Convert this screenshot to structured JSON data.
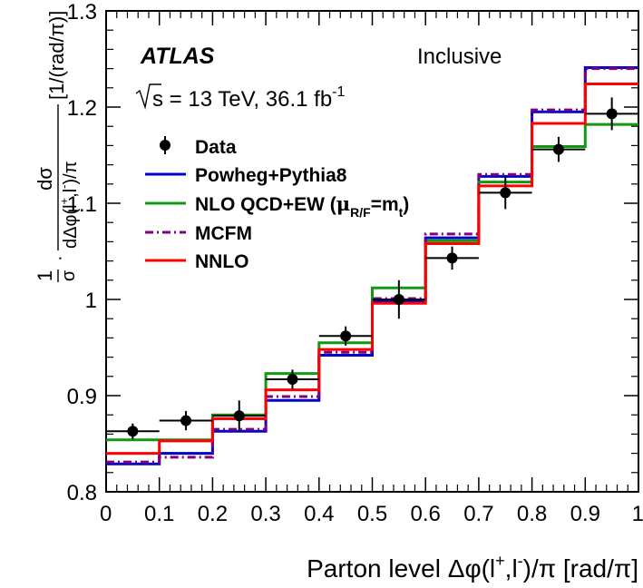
{
  "chart_data": {
    "type": "line",
    "title": "",
    "experiment_label": "ATLAS",
    "selection_label": "Inclusive",
    "energy_prefix": "s = 13 TeV, 36.1 fb",
    "lumi_superscript": "-1",
    "xlabel": "Parton level Δφ(l",
    "xlabel_sup1": "+",
    "xlabel_mid": ",l",
    "xlabel_sup2": "-",
    "xlabel_end": ")/π [rad/π]",
    "ylabel_frac": "1",
    "ylabel_sigma": "σ",
    "ylabel_num": "dσ",
    "ylabel_den": "dΔφ(l",
    "ylabel_den_sup1": "+",
    "ylabel_den_mid": ",l",
    "ylabel_den_sup2": "-",
    "ylabel_den_end": ")/π",
    "ylabel_unit": "[1/(rad/π)]",
    "xlim": [
      0,
      1
    ],
    "ylim": [
      0.8,
      1.3
    ],
    "x_ticks": [
      "0",
      "0.1",
      "0.2",
      "0.3",
      "0.4",
      "0.5",
      "0.6",
      "0.7",
      "0.8",
      "0.9",
      "1"
    ],
    "y_ticks": [
      "0.8",
      "0.9",
      "1",
      "1.1",
      "1.2",
      "1.3"
    ],
    "bin_edges": [
      0,
      0.1,
      0.2,
      0.3,
      0.4,
      0.5,
      0.6,
      0.7,
      0.8,
      0.9,
      1.0
    ],
    "data": {
      "name": "Data",
      "x": [
        0.05,
        0.15,
        0.25,
        0.35,
        0.45,
        0.55,
        0.65,
        0.75,
        0.85,
        0.95
      ],
      "y": [
        0.863,
        0.874,
        0.879,
        0.917,
        0.962,
        1.0,
        1.043,
        1.111,
        1.156,
        1.193
      ],
      "yerr": [
        0.008,
        0.01,
        0.016,
        0.01,
        0.01,
        0.02,
        0.012,
        0.017,
        0.013,
        0.017
      ],
      "color": "#000000"
    },
    "series": [
      {
        "name": "Powheg+Pythia8",
        "style": "solid",
        "color": "#0000cc",
        "values": [
          0.829,
          0.84,
          0.863,
          0.895,
          0.942,
          0.998,
          1.064,
          1.128,
          1.195,
          1.241
        ]
      },
      {
        "name": "NLO QCD+EW (",
        "name_mu": "μ",
        "name_sub": "R/F",
        "name_eq": "=m",
        "name_sub2": "t",
        "name_close": ")",
        "style": "solid",
        "color": "#129912",
        "values": [
          0.854,
          0.854,
          0.88,
          0.923,
          0.955,
          1.012,
          1.061,
          1.122,
          1.159,
          1.182
        ]
      },
      {
        "name": "MCFM",
        "style": "dashdot",
        "color": "#800080",
        "values": [
          0.831,
          0.836,
          0.865,
          0.899,
          0.945,
          1.001,
          1.068,
          1.13,
          1.197,
          1.24
        ]
      },
      {
        "name": "NNLO",
        "style": "solid",
        "color": "#ff0000",
        "values": [
          0.84,
          0.853,
          0.876,
          0.906,
          0.948,
          0.996,
          1.058,
          1.118,
          1.183,
          1.224
        ]
      }
    ],
    "grid": false,
    "legend_position": "top-left"
  }
}
